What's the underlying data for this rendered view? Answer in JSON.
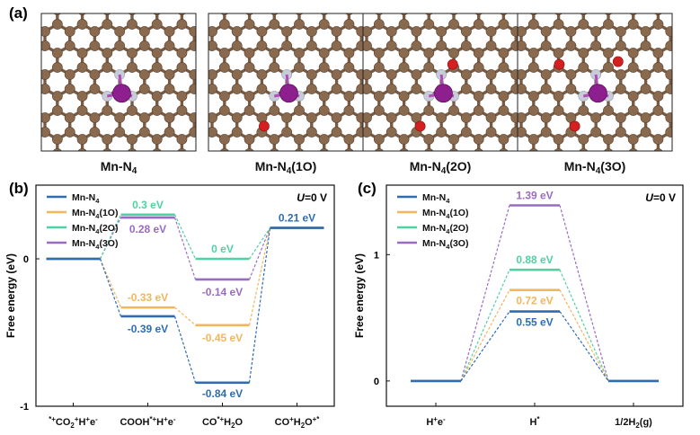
{
  "figure": {
    "panel_labels": [
      "(a)",
      "(b)",
      "(c)"
    ],
    "structures": [
      {
        "label": "Mn-N4",
        "oxygen_count": 0
      },
      {
        "label": "Mn-N4(1O)",
        "oxygen_count": 1
      },
      {
        "label": "Mn-N4(2O)",
        "oxygen_count": 2
      },
      {
        "label": "Mn-N4(3O)",
        "oxygen_count": 3
      }
    ],
    "colors": {
      "carbon": "#8a6a4f",
      "nitrogen": "#c8ccd8",
      "manganese": "#8e1f8e",
      "oxygen": "#d42020",
      "series": [
        "#2e6db4",
        "#f2b65c",
        "#4fd1a2",
        "#9a6bc4"
      ]
    }
  },
  "chart_data": [
    {
      "type": "line",
      "panel": "(b)",
      "annotation": "U=0 V",
      "ylabel": "Free energy (eV)",
      "xlabel": "",
      "categories": [
        "*+CO2+H+e-",
        "COOH*+H+e-",
        "CO*+H2O",
        "CO+H2O+*"
      ],
      "ylim": [
        -1,
        0.5
      ],
      "yticks": [
        -1,
        0
      ],
      "legend": "top-left",
      "series": [
        {
          "name": "Mn-N4",
          "values": [
            0,
            -0.39,
            -0.84,
            0.21
          ]
        },
        {
          "name": "Mn-N4(1O)",
          "values": [
            0,
            -0.33,
            -0.45,
            0.21
          ]
        },
        {
          "name": "Mn-N4(2O)",
          "values": [
            0,
            0.3,
            0,
            0.21
          ]
        },
        {
          "name": "Mn-N4(3O)",
          "values": [
            0,
            0.28,
            -0.14,
            0.21
          ]
        }
      ],
      "data_labels": [
        {
          "text": "0.3 eV",
          "series": 2,
          "index": 1
        },
        {
          "text": "0.28 eV",
          "series": 3,
          "index": 1
        },
        {
          "text": "-0.33 eV",
          "series": 1,
          "index": 1
        },
        {
          "text": "-0.39 eV",
          "series": 0,
          "index": 1
        },
        {
          "text": "0 eV",
          "series": 2,
          "index": 2
        },
        {
          "text": "-0.14 eV",
          "series": 3,
          "index": 2
        },
        {
          "text": "-0.45 eV",
          "series": 1,
          "index": 2
        },
        {
          "text": "-0.84 eV",
          "series": 0,
          "index": 2
        },
        {
          "text": "0.21 eV",
          "series": 0,
          "index": 3
        }
      ]
    },
    {
      "type": "line",
      "panel": "(c)",
      "annotation": "U=0 V",
      "ylabel": "Free energy (eV)",
      "xlabel": "",
      "categories": [
        "H+e-",
        "H*",
        "1/2H2(g)"
      ],
      "ylim": [
        -0.2,
        1.55
      ],
      "yticks": [
        0,
        1
      ],
      "legend": "top-left",
      "series": [
        {
          "name": "Mn-N4",
          "values": [
            0,
            0.55,
            0
          ]
        },
        {
          "name": "Mn-N4(1O)",
          "values": [
            0,
            0.72,
            0
          ]
        },
        {
          "name": "Mn-N4(2O)",
          "values": [
            0,
            0.88,
            0
          ]
        },
        {
          "name": "Mn-N4(3O)",
          "values": [
            0,
            1.39,
            0
          ]
        }
      ],
      "data_labels": [
        {
          "text": "1.39 eV",
          "series": 3,
          "index": 1
        },
        {
          "text": "0.88 eV",
          "series": 2,
          "index": 1
        },
        {
          "text": "0.72 eV",
          "series": 1,
          "index": 1
        },
        {
          "text": "0.55 eV",
          "series": 0,
          "index": 1
        }
      ]
    }
  ]
}
